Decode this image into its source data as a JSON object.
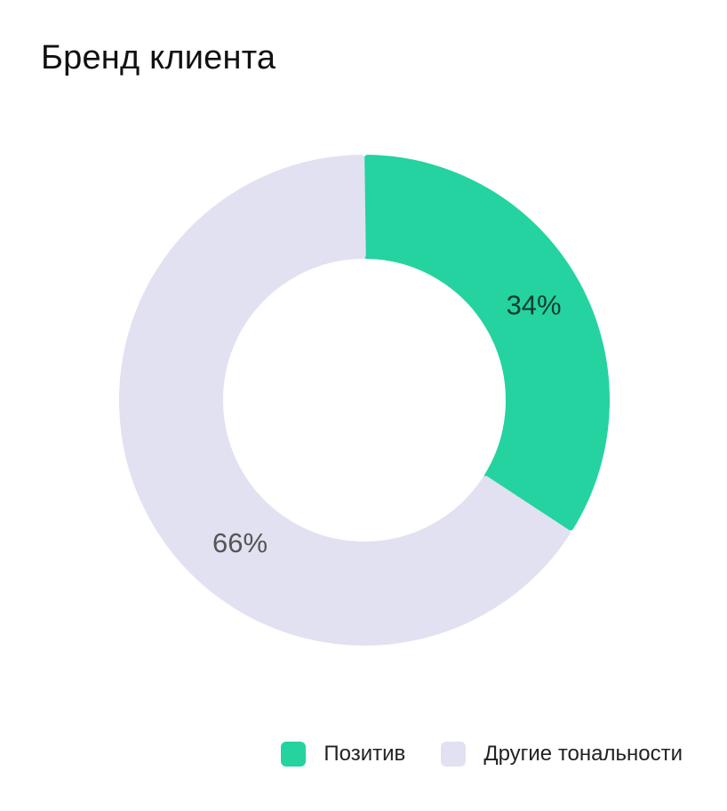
{
  "chart_data": {
    "type": "pie",
    "title": "Бренд клиента",
    "donut": true,
    "slices": [
      {
        "name": "Позитив",
        "value": 34,
        "label": "34%",
        "color": "#24d3a0",
        "label_color": "#0f3d31"
      },
      {
        "name": "Другие тональности",
        "value": 66,
        "label": "66%",
        "color": "#e1e1f2",
        "label_color": "#555555"
      }
    ],
    "legend_position": "bottom-right"
  }
}
